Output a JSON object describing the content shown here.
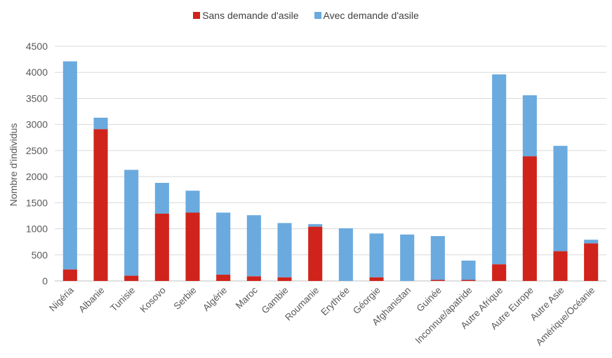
{
  "chart_data": {
    "type": "bar",
    "stacked": true,
    "title": "",
    "xlabel": "",
    "ylabel": "Nombre d'individus",
    "ylim": [
      0,
      4500
    ],
    "ytick_step": 500,
    "grid": true,
    "legend_position": "top",
    "categories": [
      "Nigéria",
      "Albanie",
      "Tunisie",
      "Kosovo",
      "Serbie",
      "Algérie",
      "Maroc",
      "Gambie",
      "Roumanie",
      "Erythrée",
      "Géorgie",
      "Afghanistan",
      "Guinée",
      "Inconnue/apatride",
      "Autre Afrique",
      "Autre Europe",
      "Autre Asie",
      "Amérique/Océanie"
    ],
    "series": [
      {
        "name": "Sans demande d'asile",
        "color": "#d0231b",
        "values": [
          220,
          2910,
          100,
          1290,
          1310,
          120,
          90,
          70,
          1040,
          0,
          70,
          0,
          20,
          20,
          320,
          2390,
          570,
          720
        ]
      },
      {
        "name": "Avec demande d'asile",
        "color": "#6aaade",
        "values": [
          3990,
          220,
          2030,
          590,
          420,
          1190,
          1170,
          1040,
          50,
          1010,
          840,
          890,
          840,
          370,
          3640,
          1170,
          2020,
          70
        ]
      }
    ]
  }
}
